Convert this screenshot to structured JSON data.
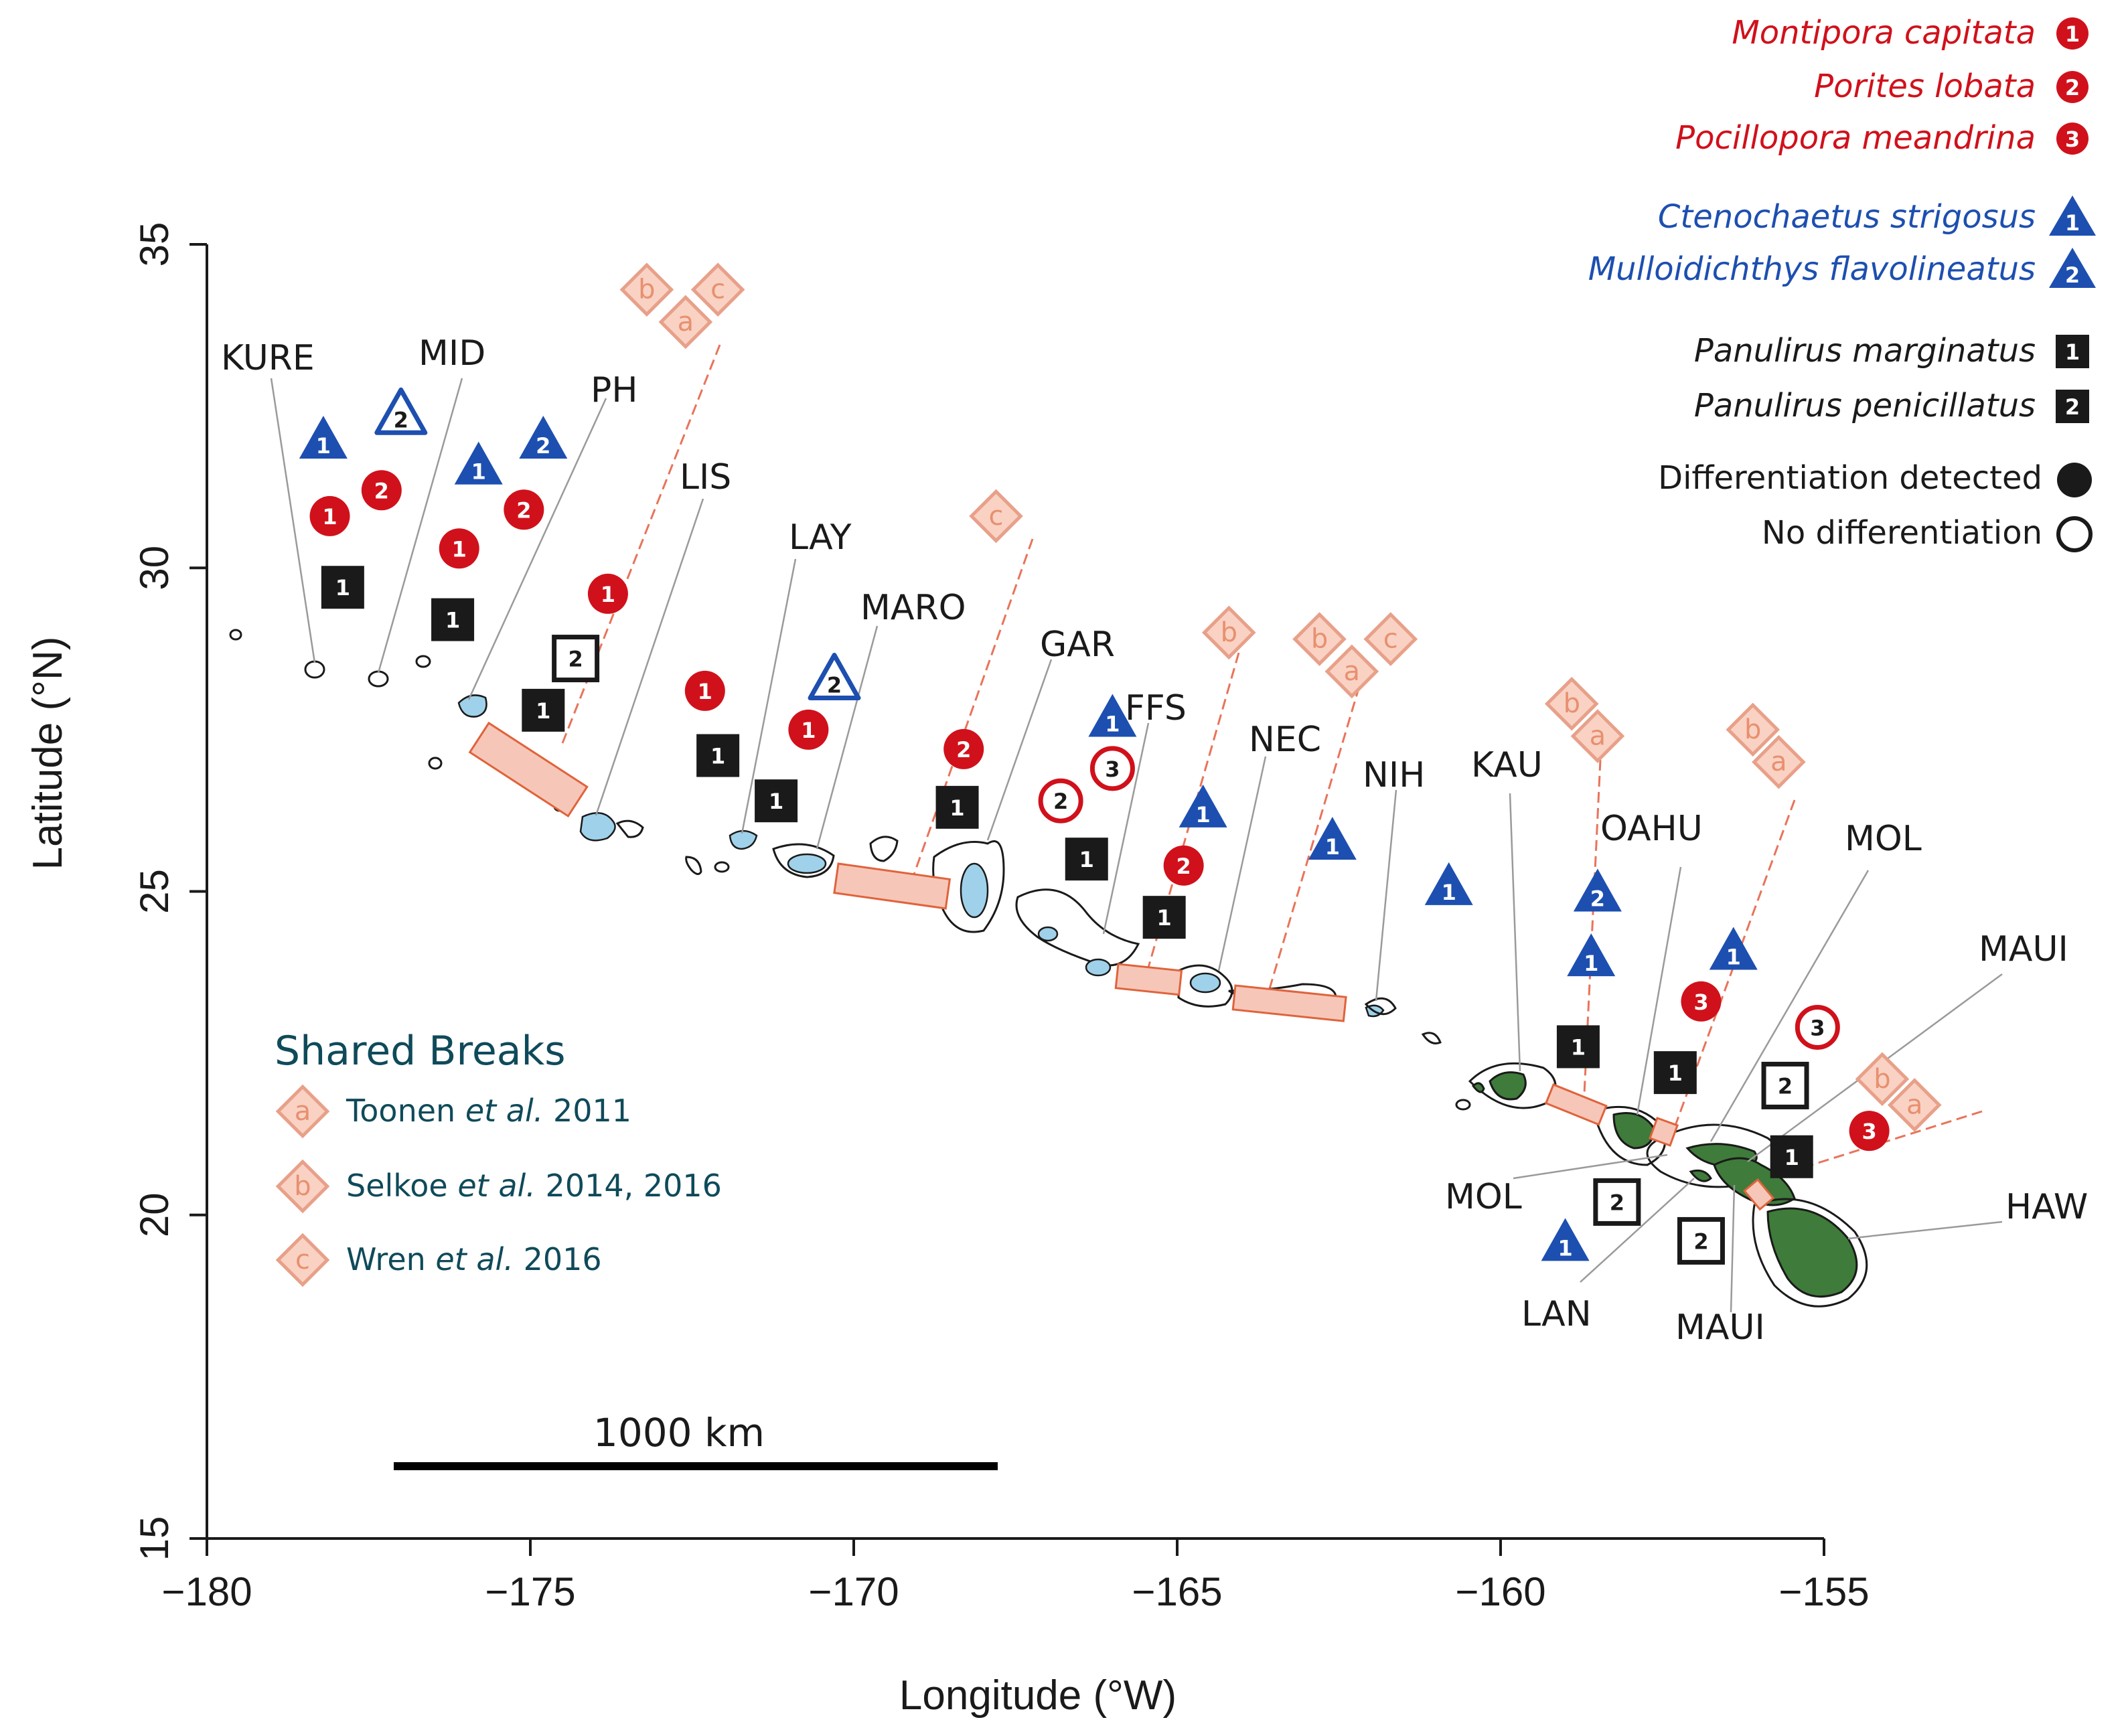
{
  "axes": {
    "xlabel": "Longitude (°W)",
    "ylabel": "Latitude (°N)",
    "xlim": [
      -180,
      -155
    ],
    "ylim": [
      15,
      35
    ],
    "xticks": [
      "−180",
      "−175",
      "−170",
      "−165",
      "−160",
      "−155"
    ],
    "yticks": [
      "15",
      "20",
      "25",
      "30",
      "35"
    ]
  },
  "scale_bar": {
    "label": "1000 km",
    "length_km": 1000
  },
  "islands": {
    "kure": "KURE",
    "mid": "MID",
    "ph": "PH",
    "lis": "LIS",
    "lay": "LAY",
    "maro": "MARO",
    "gar": "GAR",
    "ffs": "FFS",
    "nec": "NEC",
    "nih": "NIH",
    "kau": "KAU",
    "oahu": "OAHU",
    "mol_top": "MOL",
    "maui_top": "MAUI",
    "mol_bottom": "MOL",
    "lan": "LAN",
    "maui_bottom": "MAUI",
    "haw": "HAW"
  },
  "legend": {
    "species": [
      {
        "name": "Montipora capitata",
        "num": "1",
        "color": "#d0111b"
      },
      {
        "name": "Porites lobata",
        "num": "2",
        "color": "#d0111b"
      },
      {
        "name": "Pocillopora meandrina",
        "num": "3",
        "color": "#d0111b"
      },
      {
        "name": "Ctenochaetus strigosus",
        "num": "1",
        "color": "#1d4fb0"
      },
      {
        "name": "Mulloidichthys flavolineatus",
        "num": "2",
        "color": "#1d4fb0"
      },
      {
        "name": "Panulirus marginatus",
        "num": "1",
        "color": "#1a1a1a"
      },
      {
        "name": "Panulirus penicillatus",
        "num": "2",
        "color": "#1a1a1a"
      }
    ],
    "detected": "Differentiation detected",
    "none": "No differentiation"
  },
  "shared_breaks": {
    "title": "Shared Breaks",
    "items": [
      {
        "letter": "a",
        "author": "Toonen",
        "etal": "et al.",
        "year": "2011"
      },
      {
        "letter": "b",
        "author": "Selkoe",
        "etal": "et al.",
        "year": "2014, 2016"
      },
      {
        "letter": "c",
        "author": "Wren",
        "etal": "et al.",
        "year": "2016"
      }
    ]
  },
  "colors": {
    "coral": "#d0111b",
    "fish": "#1d4fb0",
    "lobster": "#1a1a1a",
    "break": "#f6c7b8",
    "break_stroke": "#e0633c",
    "reef": "#9fd2ea",
    "high_island": "#3f7b3a"
  },
  "markers": [
    {
      "type": "circle",
      "group": "coral",
      "num": "1",
      "filled": true,
      "lon": -178.1,
      "lat": 30.8
    },
    {
      "type": "circle",
      "group": "coral",
      "num": "2",
      "filled": true,
      "lon": -177.3,
      "lat": 31.2
    },
    {
      "type": "circle",
      "group": "coral",
      "num": "1",
      "filled": true,
      "lon": -176.1,
      "lat": 30.3
    },
    {
      "type": "circle",
      "group": "coral",
      "num": "2",
      "filled": true,
      "lon": -175.1,
      "lat": 30.9
    },
    {
      "type": "circle",
      "group": "coral",
      "num": "1",
      "filled": true,
      "lon": -173.8,
      "lat": 29.6
    },
    {
      "type": "circle",
      "group": "coral",
      "num": "1",
      "filled": true,
      "lon": -172.3,
      "lat": 28.1
    },
    {
      "type": "circle",
      "group": "coral",
      "num": "1",
      "filled": true,
      "lon": -170.7,
      "lat": 27.5
    },
    {
      "type": "circle",
      "group": "coral",
      "num": "2",
      "filled": true,
      "lon": -168.3,
      "lat": 27.2
    },
    {
      "type": "circle",
      "group": "coral",
      "num": "2",
      "filled": false,
      "lon": -166.8,
      "lat": 26.4
    },
    {
      "type": "circle",
      "group": "coral",
      "num": "3",
      "filled": false,
      "lon": -166.0,
      "lat": 26.9
    },
    {
      "type": "circle",
      "group": "coral",
      "num": "2",
      "filled": true,
      "lon": -164.9,
      "lat": 25.4
    },
    {
      "type": "circle",
      "group": "coral",
      "num": "3",
      "filled": true,
      "lon": -156.9,
      "lat": 23.3
    },
    {
      "type": "circle",
      "group": "coral",
      "num": "3",
      "filled": false,
      "lon": -155.1,
      "lat": 22.9
    },
    {
      "type": "circle",
      "group": "coral",
      "num": "3",
      "filled": true,
      "lon": -154.3,
      "lat": 21.3
    },
    {
      "type": "triangle",
      "group": "fish",
      "num": "1",
      "filled": true,
      "lon": -178.2,
      "lat": 32.0
    },
    {
      "type": "triangle",
      "group": "fish",
      "num": "2",
      "filled": false,
      "lon": -177.0,
      "lat": 32.4
    },
    {
      "type": "triangle",
      "group": "fish",
      "num": "1",
      "filled": true,
      "lon": -175.8,
      "lat": 31.6
    },
    {
      "type": "triangle",
      "group": "fish",
      "num": "2",
      "filled": true,
      "lon": -174.8,
      "lat": 32.0
    },
    {
      "type": "triangle",
      "group": "fish",
      "num": "2",
      "filled": false,
      "lon": -170.3,
      "lat": 28.3
    },
    {
      "type": "triangle",
      "group": "fish",
      "num": "1",
      "filled": true,
      "lon": -166.0,
      "lat": 27.7
    },
    {
      "type": "triangle",
      "group": "fish",
      "num": "1",
      "filled": true,
      "lon": -164.6,
      "lat": 26.3
    },
    {
      "type": "triangle",
      "group": "fish",
      "num": "1",
      "filled": true,
      "lon": -162.6,
      "lat": 25.8
    },
    {
      "type": "triangle",
      "group": "fish",
      "num": "1",
      "filled": true,
      "lon": -160.8,
      "lat": 25.1
    },
    {
      "type": "triangle",
      "group": "fish",
      "num": "2",
      "filled": true,
      "lon": -158.5,
      "lat": 25.0
    },
    {
      "type": "triangle",
      "group": "fish",
      "num": "1",
      "filled": true,
      "lon": -158.6,
      "lat": 24.0
    },
    {
      "type": "triangle",
      "group": "fish",
      "num": "1",
      "filled": true,
      "lon": -156.4,
      "lat": 24.1
    },
    {
      "type": "triangle",
      "group": "fish",
      "num": "1",
      "filled": true,
      "lon": -159.0,
      "lat": 19.6
    },
    {
      "type": "square",
      "group": "lobster",
      "num": "1",
      "filled": true,
      "lon": -177.9,
      "lat": 29.7
    },
    {
      "type": "square",
      "group": "lobster",
      "num": "1",
      "filled": true,
      "lon": -176.2,
      "lat": 29.2
    },
    {
      "type": "square",
      "group": "lobster",
      "num": "2",
      "filled": false,
      "lon": -174.3,
      "lat": 28.6
    },
    {
      "type": "square",
      "group": "lobster",
      "num": "1",
      "filled": true,
      "lon": -174.8,
      "lat": 27.8
    },
    {
      "type": "square",
      "group": "lobster",
      "num": "1",
      "filled": true,
      "lon": -172.1,
      "lat": 27.1
    },
    {
      "type": "square",
      "group": "lobster",
      "num": "1",
      "filled": true,
      "lon": -171.2,
      "lat": 26.4
    },
    {
      "type": "square",
      "group": "lobster",
      "num": "1",
      "filled": true,
      "lon": -168.4,
      "lat": 26.3
    },
    {
      "type": "square",
      "group": "lobster",
      "num": "1",
      "filled": true,
      "lon": -166.4,
      "lat": 25.5
    },
    {
      "type": "square",
      "group": "lobster",
      "num": "1",
      "filled": true,
      "lon": -165.2,
      "lat": 24.6
    },
    {
      "type": "square",
      "group": "lobster",
      "num": "1",
      "filled": true,
      "lon": -158.8,
      "lat": 22.6
    },
    {
      "type": "square",
      "group": "lobster",
      "num": "1",
      "filled": true,
      "lon": -157.3,
      "lat": 22.2
    },
    {
      "type": "square",
      "group": "lobster",
      "num": "2",
      "filled": false,
      "lon": -155.6,
      "lat": 22.0
    },
    {
      "type": "square",
      "group": "lobster",
      "num": "1",
      "filled": true,
      "lon": -155.5,
      "lat": 20.9
    },
    {
      "type": "square",
      "group": "lobster",
      "num": "2",
      "filled": false,
      "lon": -158.2,
      "lat": 20.2
    },
    {
      "type": "square",
      "group": "lobster",
      "num": "2",
      "filled": false,
      "lon": -156.9,
      "lat": 19.6
    }
  ],
  "break_markers": [
    {
      "letter": "b",
      "lon": -173.2,
      "lat": 34.3
    },
    {
      "letter": "c",
      "lon": -172.1,
      "lat": 34.3
    },
    {
      "letter": "a",
      "lon": -172.6,
      "lat": 33.8
    },
    {
      "letter": "c",
      "lon": -167.8,
      "lat": 30.8
    },
    {
      "letter": "b",
      "lon": -164.2,
      "lat": 29.0
    },
    {
      "letter": "b",
      "lon": -162.8,
      "lat": 28.9
    },
    {
      "letter": "c",
      "lon": -161.7,
      "lat": 28.9
    },
    {
      "letter": "a",
      "lon": -162.3,
      "lat": 28.4
    },
    {
      "letter": "b",
      "lon": -158.9,
      "lat": 27.9
    },
    {
      "letter": "a",
      "lon": -158.5,
      "lat": 27.4
    },
    {
      "letter": "b",
      "lon": -156.1,
      "lat": 27.5
    },
    {
      "letter": "a",
      "lon": -155.7,
      "lat": 27.0
    },
    {
      "letter": "b",
      "lon": -154.1,
      "lat": 22.1
    },
    {
      "letter": "a",
      "lon": -153.6,
      "lat": 21.7
    }
  ]
}
